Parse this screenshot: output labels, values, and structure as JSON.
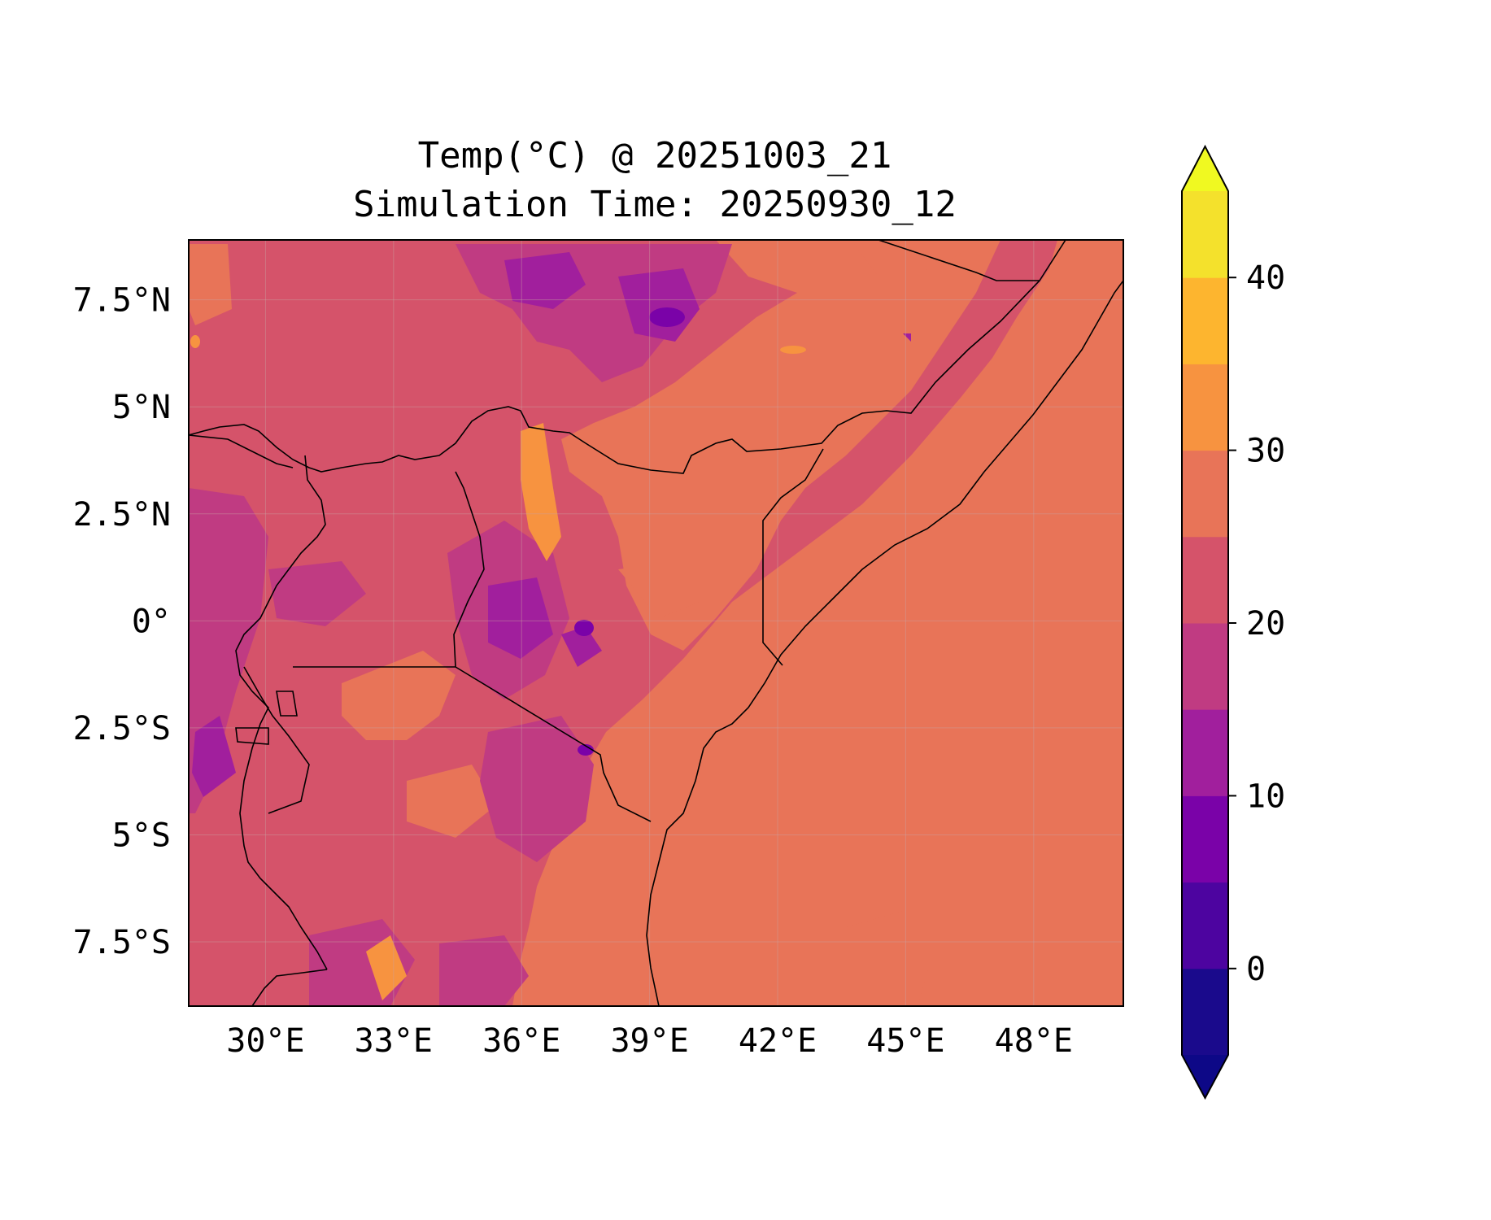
{
  "title": {
    "line1": "Temp(°C) @ 20251003_21",
    "line2": "Simulation Time: 20250930_12"
  },
  "map": {
    "lon_range": [
      28.2,
      50.1
    ],
    "lat_range": [
      -9.0,
      8.9
    ],
    "x_ticks": [
      "30°E",
      "33°E",
      "36°E",
      "39°E",
      "42°E",
      "45°E",
      "48°E"
    ],
    "x_tick_values": [
      30,
      33,
      36,
      39,
      42,
      45,
      48
    ],
    "y_ticks": [
      "7.5°N",
      "5°N",
      "2.5°N",
      "0°",
      "2.5°S",
      "5°S",
      "7.5°S"
    ],
    "y_tick_values": [
      7.5,
      5,
      2.5,
      0,
      -2.5,
      -5,
      -7.5
    ],
    "grid": true,
    "ocean_color": "#e87458",
    "land_base_color": "#d5536a"
  },
  "colorbar": {
    "levels": [
      -5,
      0,
      5,
      10,
      15,
      20,
      25,
      30,
      35,
      40,
      45
    ],
    "colors": [
      "#1a0a8c",
      "#4d04a0",
      "#7a02a8",
      "#a11f9d",
      "#c03b82",
      "#d5536a",
      "#e87458",
      "#f79340",
      "#fdb52f",
      "#f4e12c"
    ],
    "extend_min_color": "#0d0887",
    "extend_max_color": "#f0f921",
    "tick_labels": [
      "0",
      "10",
      "20",
      "30",
      "40"
    ],
    "tick_values": [
      0,
      10,
      20,
      30,
      40
    ]
  }
}
